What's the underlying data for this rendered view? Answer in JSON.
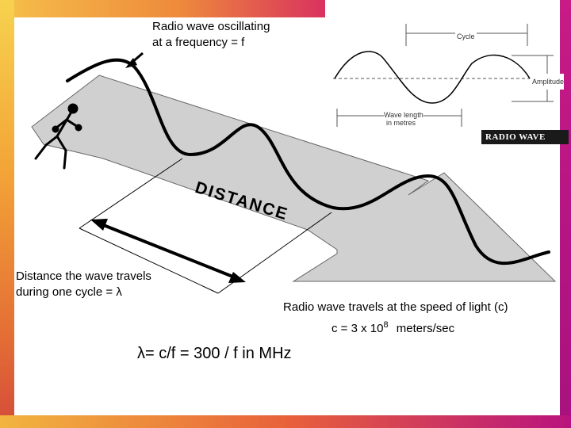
{
  "labels": {
    "oscillating_line1": "Radio wave oscillating",
    "oscillating_line2": "at a frequency = f",
    "distance": "DISTANCE",
    "travels_line1": "Distance the wave travels",
    "travels_line2": "during one cycle = λ",
    "speed_line1": "Radio wave travels at the speed of light (c)",
    "speed_base": "c = 3 x 10",
    "speed_exp": "8",
    "speed_unit": "meters/sec",
    "formula": "λ= c/f = 300 / f in MHz"
  },
  "inset": {
    "cycle": "Cycle",
    "amplitude": "Amplitude",
    "wavelength_line1": "Wave length",
    "wavelength_line2": "in metres",
    "badge": "RADIO WAVE"
  },
  "colors": {
    "ground": "#d0d0d0",
    "wave": "#000000",
    "badge_bg": "#1a1a1a"
  }
}
